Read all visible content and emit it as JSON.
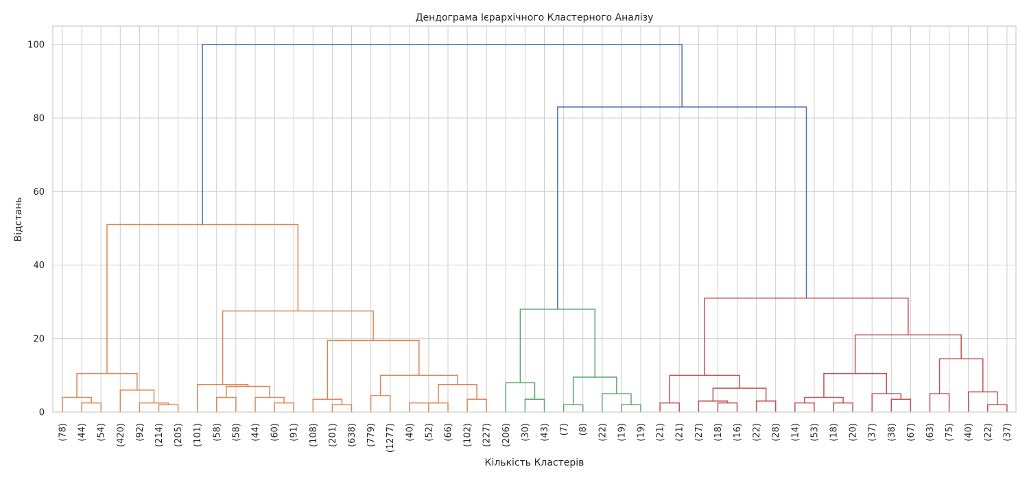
{
  "chart_data": {
    "type": "dendrogram",
    "title": "Дендограма Ієрархічного Кластерного Аналізу",
    "xlabel": "Кількість Кластерів",
    "ylabel": "Відстань",
    "ylim": [
      0,
      105
    ],
    "yticks": [
      0,
      20,
      40,
      60,
      80,
      100
    ],
    "grid": true,
    "leaf_labels": [
      "(78)",
      "(44)",
      "(54)",
      "(420)",
      "(92)",
      "(214)",
      "(205)",
      "(101)",
      "(58)",
      "(58)",
      "(44)",
      "(60)",
      "(91)",
      "(108)",
      "(201)",
      "(638)",
      "(779)",
      "(1277)",
      "(40)",
      "(52)",
      "(66)",
      "(102)",
      "(227)",
      "(206)",
      "(30)",
      "(43)",
      "(7)",
      "(8)",
      "(22)",
      "(19)",
      "(19)",
      "(21)",
      "(21)",
      "(27)",
      "(18)",
      "(16)",
      "(22)",
      "(28)",
      "(14)",
      "(53)",
      "(18)",
      "(20)",
      "(37)",
      "(38)",
      "(67)",
      "(63)",
      "(75)",
      "(40)",
      "(22)",
      "(37)"
    ],
    "colors": {
      "orange": "#dd8452",
      "green": "#55a868",
      "red": "#c44e52",
      "blue": "#4c72b0"
    },
    "links": [
      {
        "id": "o1",
        "left": 1,
        "right": 2,
        "height": 2.5,
        "color": "orange"
      },
      {
        "id": "o2",
        "left": 0,
        "right": "o1",
        "height": 4.0,
        "color": "orange"
      },
      {
        "id": "o3",
        "left": 5,
        "right": 6,
        "height": 2.0,
        "color": "orange"
      },
      {
        "id": "o4",
        "left": 4,
        "right": "o3",
        "height": 2.5,
        "color": "orange"
      },
      {
        "id": "o5",
        "left": 3,
        "right": "o4",
        "height": 6.0,
        "color": "orange"
      },
      {
        "id": "o6",
        "left": "o2",
        "right": "o5",
        "height": 10.5,
        "color": "orange"
      },
      {
        "id": "o7",
        "left": 8,
        "right": 9,
        "height": 4.0,
        "color": "orange"
      },
      {
        "id": "o8",
        "left": 11,
        "right": 12,
        "height": 2.5,
        "color": "orange"
      },
      {
        "id": "o9",
        "left": 10,
        "right": "o8",
        "height": 4.0,
        "color": "orange"
      },
      {
        "id": "o10",
        "left": "o7",
        "right": "o9",
        "height": 7.0,
        "color": "orange"
      },
      {
        "id": "o11",
        "left": 7,
        "right": "o10",
        "height": 7.5,
        "color": "orange"
      },
      {
        "id": "o12",
        "left": 14,
        "right": 15,
        "height": 2.0,
        "color": "orange"
      },
      {
        "id": "o13",
        "left": 13,
        "right": "o12",
        "height": 3.5,
        "color": "orange"
      },
      {
        "id": "o14",
        "left": 16,
        "right": 17,
        "height": 4.5,
        "color": "orange"
      },
      {
        "id": "o15",
        "left": 19,
        "right": 20,
        "height": 2.5,
        "color": "orange"
      },
      {
        "id": "o16",
        "left": 18,
        "right": "o15",
        "height": 2.5,
        "color": "orange"
      },
      {
        "id": "o17",
        "left": 21,
        "right": 22,
        "height": 3.5,
        "color": "orange"
      },
      {
        "id": "o18",
        "left": "o15",
        "right": "o17",
        "height": 7.5,
        "color": "orange"
      },
      {
        "id": "o19",
        "left": "o14",
        "right": "o18",
        "height": 10.0,
        "color": "orange"
      },
      {
        "id": "o20",
        "left": "o13",
        "right": "o19",
        "height": 19.5,
        "color": "orange"
      },
      {
        "id": "o21",
        "left": "o11",
        "right": "o20",
        "height": 27.5,
        "color": "orange"
      },
      {
        "id": "o22",
        "left": "o6",
        "right": "o21",
        "height": 51.0,
        "color": "orange"
      },
      {
        "id": "g1",
        "left": 24,
        "right": 25,
        "height": 3.5,
        "color": "green"
      },
      {
        "id": "g2",
        "left": 23,
        "right": "g1",
        "height": 8.0,
        "color": "green"
      },
      {
        "id": "g3",
        "left": 26,
        "right": 27,
        "height": 2.0,
        "color": "green"
      },
      {
        "id": "g4",
        "left": 29,
        "right": 30,
        "height": 2.0,
        "color": "green"
      },
      {
        "id": "g5",
        "left": 28,
        "right": "g4",
        "height": 5.0,
        "color": "green"
      },
      {
        "id": "g6",
        "left": "g3",
        "right": "g5",
        "height": 9.5,
        "color": "green"
      },
      {
        "id": "g7",
        "left": "g2",
        "right": "g6",
        "height": 28.0,
        "color": "green"
      },
      {
        "id": "r1",
        "left": 31,
        "right": 32,
        "height": 2.5,
        "color": "red"
      },
      {
        "id": "r2",
        "left": 34,
        "right": 35,
        "height": 2.5,
        "color": "red"
      },
      {
        "id": "r3",
        "left": 33,
        "right": "r2",
        "height": 3.0,
        "color": "red"
      },
      {
        "id": "r4",
        "left": 36,
        "right": 37,
        "height": 3.0,
        "color": "red"
      },
      {
        "id": "r5",
        "left": "r3",
        "right": "r4",
        "height": 6.5,
        "color": "red"
      },
      {
        "id": "r6",
        "left": "r1",
        "right": "r5",
        "height": 10.0,
        "color": "red"
      },
      {
        "id": "r7",
        "left": 38,
        "right": 39,
        "height": 2.5,
        "color": "red"
      },
      {
        "id": "r8",
        "left": 40,
        "right": 41,
        "height": 2.5,
        "color": "red"
      },
      {
        "id": "r9",
        "left": "r7",
        "right": "r8",
        "height": 4.0,
        "color": "red"
      },
      {
        "id": "r10",
        "left": 43,
        "right": 44,
        "height": 3.5,
        "color": "red"
      },
      {
        "id": "r11",
        "left": 42,
        "right": "r10",
        "height": 5.0,
        "color": "red"
      },
      {
        "id": "r12",
        "left": "r9",
        "right": "r11",
        "height": 10.5,
        "color": "red"
      },
      {
        "id": "r13",
        "left": 45,
        "right": 46,
        "height": 5.0,
        "color": "red"
      },
      {
        "id": "r14",
        "left": 48,
        "right": 49,
        "height": 2.0,
        "color": "red"
      },
      {
        "id": "r15",
        "left": 47,
        "right": "r14",
        "height": 5.5,
        "color": "red"
      },
      {
        "id": "r16",
        "left": "r13",
        "right": "r15",
        "height": 14.5,
        "color": "red"
      },
      {
        "id": "r17",
        "left": "r12",
        "right": "r16",
        "height": 21.0,
        "color": "red"
      },
      {
        "id": "r18",
        "left": "r6",
        "right": "r17",
        "height": 31.0,
        "color": "red"
      },
      {
        "id": "b1",
        "left": "g7",
        "right": "r18",
        "height": 83.0,
        "color": "blue"
      },
      {
        "id": "b2",
        "left": "o22",
        "right": "b1",
        "height": 100.0,
        "color": "blue"
      }
    ]
  }
}
